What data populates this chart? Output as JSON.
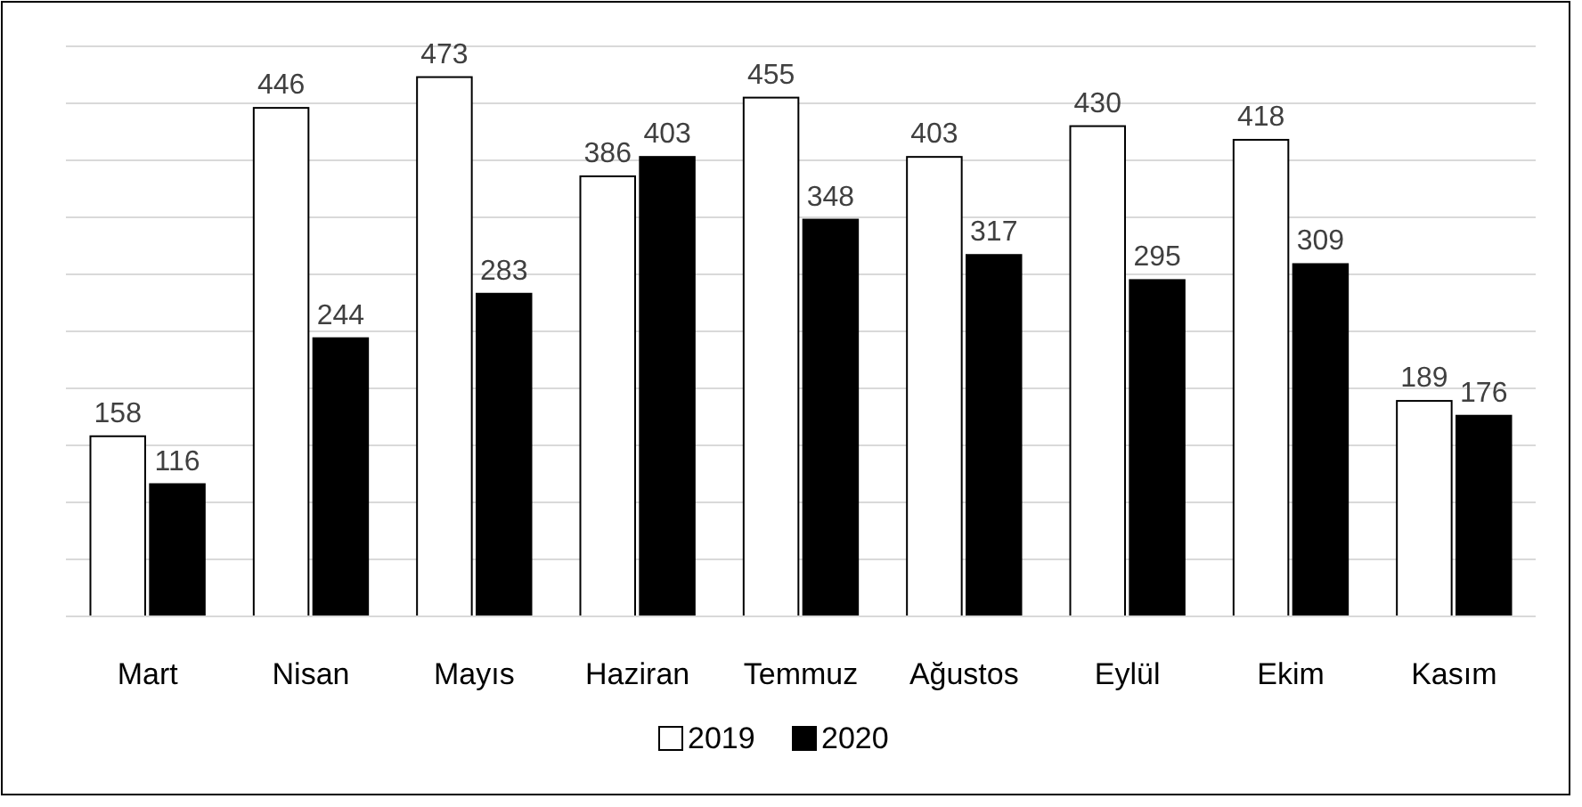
{
  "chart_data": {
    "type": "bar",
    "categories": [
      "Mart",
      "Nisan",
      "Mayıs",
      "Haziran",
      "Temmuz",
      "Ağustos",
      "Eylül",
      "Ekim",
      "Kasım"
    ],
    "series": [
      {
        "name": "2019",
        "color": "#ffffff",
        "values": [
          158,
          446,
          473,
          386,
          455,
          403,
          430,
          418,
          189
        ]
      },
      {
        "name": "2020",
        "color": "#000000",
        "values": [
          116,
          244,
          283,
          403,
          348,
          317,
          295,
          309,
          176
        ]
      }
    ],
    "ylim": [
      0,
      500
    ],
    "yticks": [
      {
        "value": 0,
        "label": null
      },
      {
        "value": 50,
        "label": null
      },
      {
        "value": 100,
        "label": null
      },
      {
        "value": 150,
        "label": null
      },
      {
        "value": 200,
        "label": null
      },
      {
        "value": 250,
        "label": null
      },
      {
        "value": 300,
        "label": null
      },
      {
        "value": 350,
        "label": null
      },
      {
        "value": 400,
        "label": null
      },
      {
        "value": 450,
        "label": null
      },
      {
        "value": 500,
        "label": null
      }
    ],
    "grid": "y",
    "tick_labels": "x",
    "data_labels": true,
    "legend": "bottom"
  }
}
